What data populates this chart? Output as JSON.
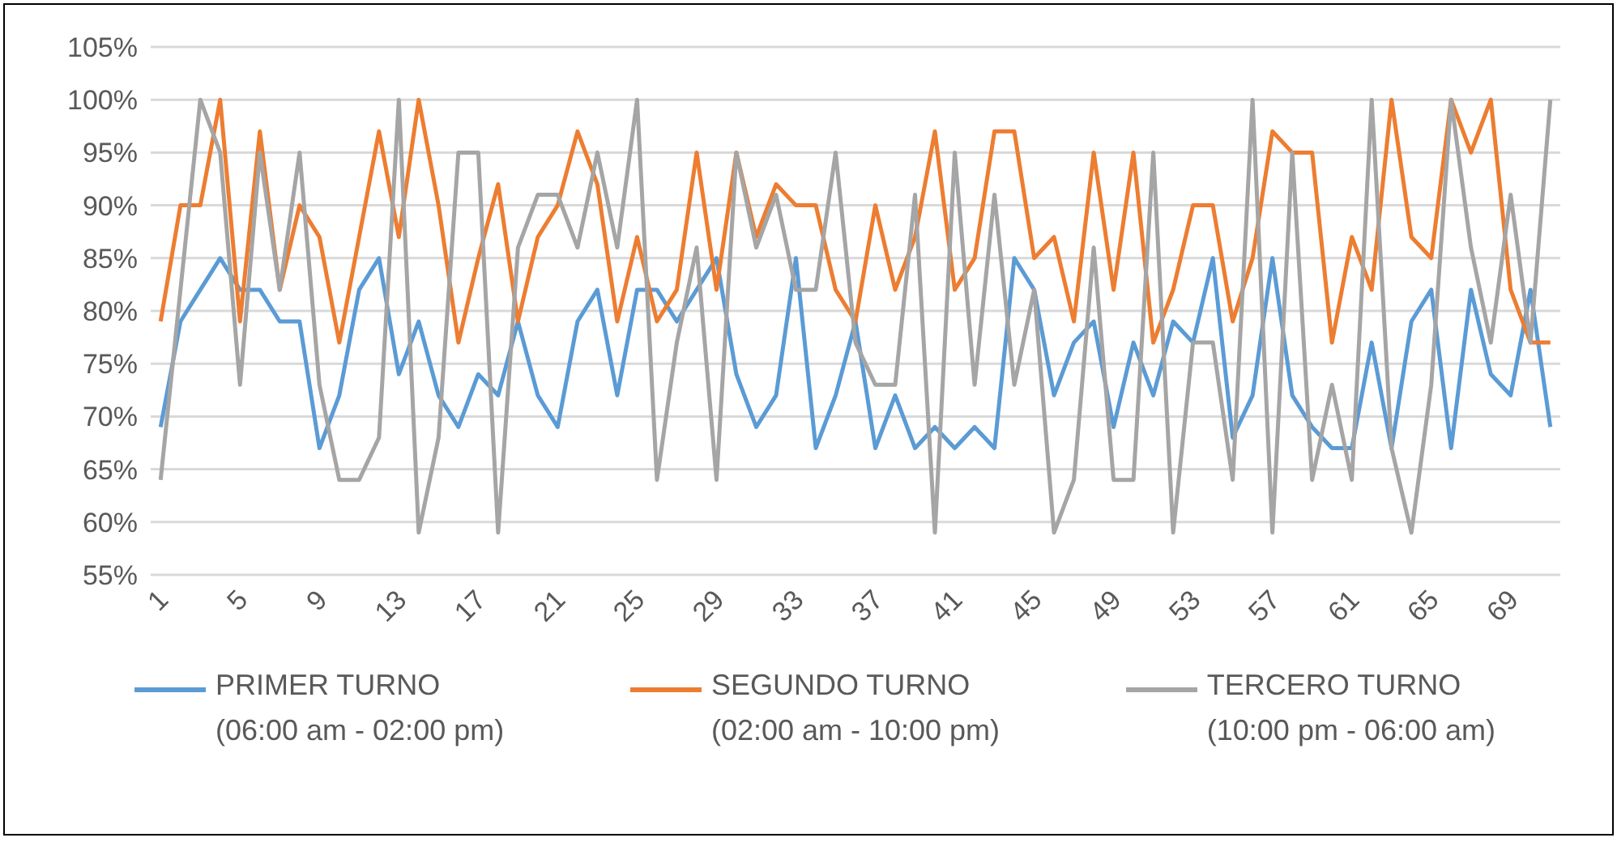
{
  "chart_data": {
    "type": "line",
    "x": [
      1,
      2,
      3,
      4,
      5,
      6,
      7,
      8,
      9,
      10,
      11,
      12,
      13,
      14,
      15,
      16,
      17,
      18,
      19,
      20,
      21,
      22,
      23,
      24,
      25,
      26,
      27,
      28,
      29,
      30,
      31,
      32,
      33,
      34,
      35,
      36,
      37,
      38,
      39,
      40,
      41,
      42,
      43,
      44,
      45,
      46,
      47,
      48,
      49,
      50,
      51,
      52,
      53,
      54,
      55,
      56,
      57,
      58,
      59,
      60,
      61,
      62,
      63,
      64,
      65,
      66,
      67,
      68,
      69,
      70,
      71
    ],
    "series": [
      {
        "name": "PRIMER TURNO\n(06:00 am - 02:00 pm)",
        "color": "#5b9bd5",
        "values": [
          69,
          79,
          82,
          85,
          82,
          82,
          79,
          79,
          67,
          72,
          82,
          85,
          74,
          79,
          72,
          69,
          74,
          72,
          79,
          72,
          69,
          79,
          82,
          72,
          82,
          82,
          79,
          82,
          85,
          74,
          69,
          72,
          85,
          67,
          72,
          79,
          67,
          72,
          67,
          69,
          67,
          69,
          67,
          85,
          82,
          72,
          77,
          79,
          69,
          77,
          72,
          79,
          77,
          85,
          68,
          72,
          85,
          72,
          69,
          67,
          67,
          77,
          67,
          79,
          82,
          67,
          82,
          74,
          72,
          82,
          69
        ]
      },
      {
        "name": "SEGUNDO TURNO\n(02:00 am - 10:00 pm)",
        "color": "#ed7d31",
        "values": [
          79,
          90,
          90,
          100,
          79,
          97,
          82,
          90,
          87,
          77,
          87,
          97,
          87,
          100,
          90,
          77,
          85,
          92,
          79,
          87,
          90,
          97,
          92,
          79,
          87,
          79,
          82,
          95,
          82,
          95,
          87,
          92,
          90,
          90,
          82,
          79,
          90,
          82,
          87,
          97,
          82,
          85,
          97,
          97,
          85,
          87,
          79,
          95,
          82,
          95,
          77,
          82,
          90,
          90,
          79,
          85,
          97,
          95,
          95,
          77,
          87,
          82,
          100,
          87,
          85,
          100,
          95,
          100,
          82,
          77,
          77
        ]
      },
      {
        "name": "TERCERO TURNO\n(10:00 pm - 06:00 am)",
        "color": "#a5a5a5",
        "values": [
          64,
          82,
          100,
          95,
          73,
          95,
          82,
          95,
          73,
          64,
          64,
          68,
          100,
          59,
          68,
          95,
          95,
          59,
          86,
          91,
          91,
          86,
          95,
          86,
          100,
          64,
          77,
          86,
          64,
          95,
          86,
          91,
          82,
          82,
          95,
          77,
          73,
          73,
          91,
          59,
          95,
          73,
          91,
          73,
          82,
          59,
          64,
          86,
          64,
          64,
          95,
          59,
          77,
          77,
          64,
          100,
          59,
          95,
          64,
          73,
          64,
          100,
          67,
          59,
          73,
          100,
          86,
          77,
          91,
          77,
          100
        ]
      }
    ],
    "xlim": [
      0.5,
      71.5
    ],
    "xticks": [
      1,
      5,
      9,
      13,
      17,
      21,
      25,
      29,
      33,
      37,
      41,
      45,
      49,
      53,
      57,
      61,
      65,
      69
    ],
    "ylim": [
      55,
      105
    ],
    "yticks": [
      {
        "value": 55,
        "label": "55%"
      },
      {
        "value": 60,
        "label": "60%"
      },
      {
        "value": 65,
        "label": "65%"
      },
      {
        "value": 70,
        "label": "70%"
      },
      {
        "value": 75,
        "label": "75%"
      },
      {
        "value": 80,
        "label": "80%"
      },
      {
        "value": 85,
        "label": "85%"
      },
      {
        "value": 90,
        "label": "90%"
      },
      {
        "value": 95,
        "label": "95%"
      },
      {
        "value": 100,
        "label": "100%"
      },
      {
        "value": 105,
        "label": "105%"
      }
    ],
    "grid": "y",
    "legend": "bottom"
  }
}
